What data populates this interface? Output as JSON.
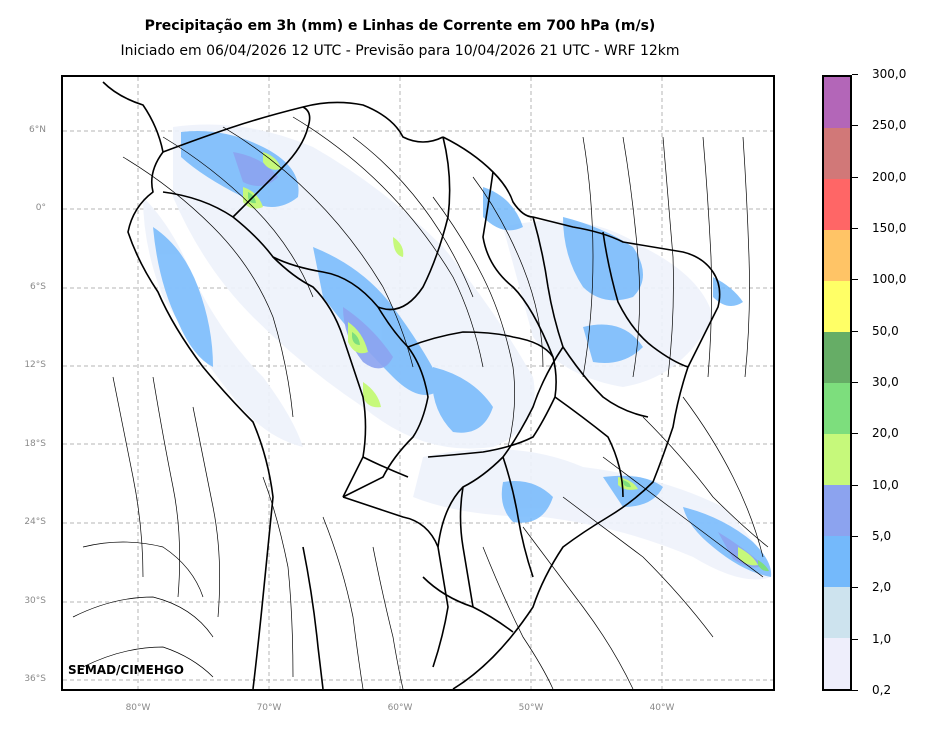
{
  "title": "Precipitação em 3h (mm) e Linhas de Corrente em 700 hPa (m/s)",
  "subtitle": "Iniciado em 06/04/2026 12 UTC - Previsão para 10/04/2026 21 UTC - WRF 12km",
  "credit": "SEMAD/CIMEHGO",
  "lat_labels": [
    "6°N",
    "0°",
    "6°S",
    "12°S",
    "18°S",
    "24°S",
    "30°S",
    "36°S"
  ],
  "lon_labels": [
    "80°W",
    "70°W",
    "60°W",
    "50°W",
    "40°W"
  ],
  "colorbar": {
    "labels": [
      "0,2",
      "1,0",
      "2,0",
      "5,0",
      "10,0",
      "20,0",
      "30,0",
      "50,0",
      "100,0",
      "150,0",
      "200,0",
      "250,0",
      "300,0"
    ],
    "colors": [
      "#eeeefb",
      "#cde3ee",
      "#74b9fb",
      "#8ca3ef",
      "#c6f97b",
      "#7dde7d",
      "#66ad66",
      "#ffff66",
      "#ffc466",
      "#ff6666",
      "#d17878",
      "#b366b8"
    ]
  }
}
